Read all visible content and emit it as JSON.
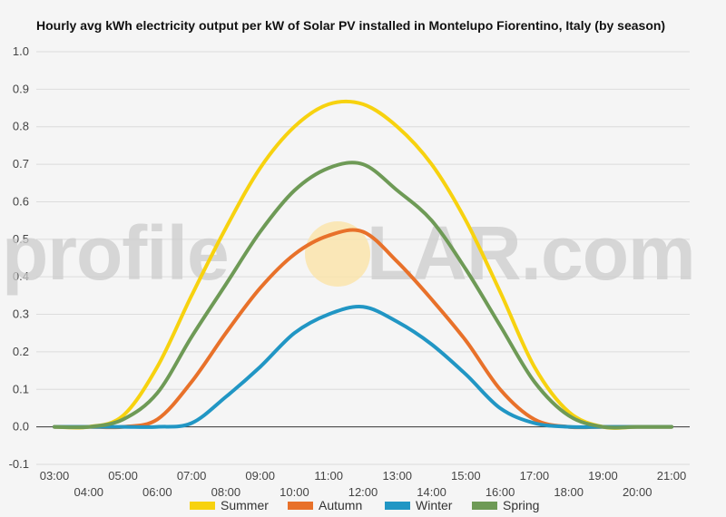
{
  "chart_data": {
    "type": "line",
    "title": "Hourly avg kWh electricity output per kW of Solar PV installed in Montelupo Fiorentino, Italy (by season)",
    "xlabel": "",
    "ylabel": "",
    "x": [
      "03:00",
      "04:00",
      "05:00",
      "06:00",
      "07:00",
      "08:00",
      "09:00",
      "10:00",
      "11:00",
      "12:00",
      "13:00",
      "14:00",
      "15:00",
      "16:00",
      "17:00",
      "18:00",
      "19:00",
      "20:00",
      "21:00"
    ],
    "y_ticks": [
      1.0,
      0.9,
      0.8,
      0.7,
      0.6,
      0.5,
      0.4,
      0.3,
      0.2,
      0.1,
      0.0,
      -0.1
    ],
    "y_tick_labels": [
      "1.0",
      "0.9",
      "0.8",
      "0.7",
      "0.6",
      "0.5",
      "0.4",
      "0.3",
      "0.2",
      "0.1",
      "0.0",
      "-0.1"
    ],
    "ylim": [
      -0.1,
      1.0
    ],
    "grid": true,
    "legend_position": "bottom",
    "series": [
      {
        "name": "Summer",
        "color": "#f7d20f",
        "values": [
          0.0,
          0.0,
          0.03,
          0.16,
          0.35,
          0.53,
          0.69,
          0.8,
          0.86,
          0.86,
          0.8,
          0.7,
          0.55,
          0.36,
          0.16,
          0.04,
          0.0,
          0.0,
          0.0
        ]
      },
      {
        "name": "Autumn",
        "color": "#e8712a",
        "values": [
          0.0,
          0.0,
          0.0,
          0.02,
          0.12,
          0.25,
          0.37,
          0.46,
          0.51,
          0.52,
          0.44,
          0.34,
          0.23,
          0.1,
          0.02,
          0.0,
          0.0,
          0.0,
          0.0
        ]
      },
      {
        "name": "Winter",
        "color": "#2196c4",
        "values": [
          0.0,
          0.0,
          0.0,
          0.0,
          0.01,
          0.08,
          0.16,
          0.25,
          0.3,
          0.32,
          0.28,
          0.22,
          0.14,
          0.05,
          0.01,
          0.0,
          0.0,
          0.0,
          0.0
        ]
      },
      {
        "name": "Spring",
        "color": "#6e9a56",
        "values": [
          0.0,
          0.0,
          0.02,
          0.09,
          0.24,
          0.38,
          0.52,
          0.63,
          0.69,
          0.7,
          0.63,
          0.55,
          0.42,
          0.27,
          0.12,
          0.03,
          0.0,
          0.0,
          0.0
        ]
      }
    ]
  },
  "watermark": {
    "text_left": "profile",
    "text_right": "LAR.com",
    "sun_color": "#fbe3a8"
  }
}
